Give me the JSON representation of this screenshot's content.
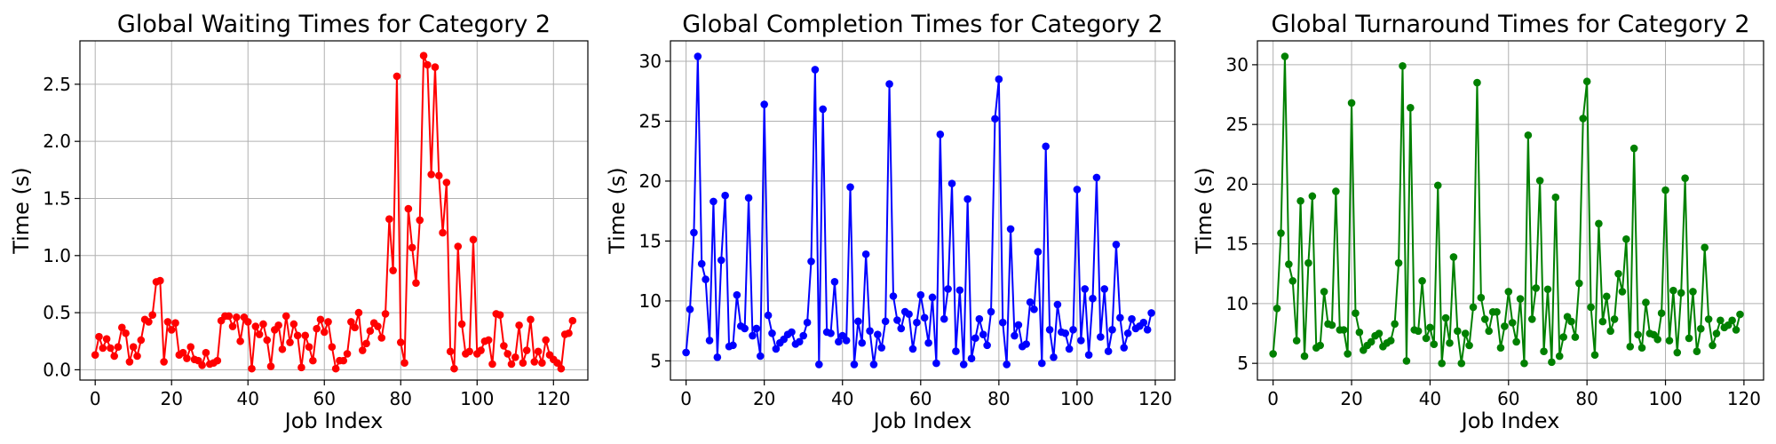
{
  "chart_data": [
    {
      "type": "line",
      "title": "Global Waiting Times for Category 2",
      "xlabel": "Job Index",
      "ylabel": "Time (s)",
      "color": "#ff0000",
      "xlim": [
        -4,
        129
      ],
      "ylim": [
        -0.09,
        2.88
      ],
      "xticks": [
        0,
        20,
        40,
        60,
        80,
        100,
        120
      ],
      "yticks": [
        0.0,
        0.5,
        1.0,
        1.5,
        2.0,
        2.5
      ],
      "ytick_labels": [
        "0.0",
        "0.5",
        "1.0",
        "1.5",
        "2.0",
        "2.5"
      ],
      "grid": true,
      "values": [
        0.13,
        0.29,
        0.19,
        0.27,
        0.19,
        0.12,
        0.2,
        0.37,
        0.32,
        0.07,
        0.2,
        0.12,
        0.26,
        0.44,
        0.42,
        0.48,
        0.77,
        0.78,
        0.07,
        0.42,
        0.35,
        0.41,
        0.13,
        0.15,
        0.1,
        0.2,
        0.09,
        0.08,
        0.04,
        0.15,
        0.05,
        0.06,
        0.08,
        0.43,
        0.47,
        0.47,
        0.38,
        0.46,
        0.25,
        0.46,
        0.42,
        0.01,
        0.38,
        0.31,
        0.4,
        0.26,
        0.03,
        0.35,
        0.39,
        0.18,
        0.47,
        0.24,
        0.4,
        0.3,
        0.02,
        0.3,
        0.2,
        0.08,
        0.36,
        0.44,
        0.33,
        0.42,
        0.2,
        0.01,
        0.08,
        0.08,
        0.14,
        0.42,
        0.37,
        0.5,
        0.17,
        0.23,
        0.34,
        0.41,
        0.38,
        0.28,
        0.49,
        1.32,
        0.87,
        2.57,
        0.24,
        0.06,
        1.41,
        1.07,
        0.76,
        1.31,
        2.75,
        2.67,
        1.71,
        2.65,
        1.7,
        1.2,
        1.64,
        0.16,
        0.01,
        1.08,
        0.4,
        0.14,
        0.16,
        1.14,
        0.14,
        0.17,
        0.25,
        0.26,
        0.05,
        0.49,
        0.48,
        0.21,
        0.14,
        0.05,
        0.11,
        0.39,
        0.06,
        0.17,
        0.44,
        0.07,
        0.16,
        0.06,
        0.26,
        0.13,
        0.09,
        0.06,
        0.01,
        0.31,
        0.32,
        0.43
      ]
    },
    {
      "type": "line",
      "title": "Global Completion Times for Category 2",
      "xlabel": "Job Index",
      "ylabel": "Time (s)",
      "color": "#0000ff",
      "xlim": [
        -4,
        125
      ],
      "ylim": [
        3.4,
        31.7
      ],
      "xticks": [
        0,
        20,
        40,
        60,
        80,
        100,
        120
      ],
      "yticks": [
        5,
        10,
        15,
        20,
        25,
        30
      ],
      "ytick_labels": [
        "5",
        "10",
        "15",
        "20",
        "25",
        "30"
      ],
      "grid": true,
      "values": [
        5.7,
        9.3,
        15.7,
        30.4,
        13.1,
        11.8,
        6.7,
        18.3,
        5.3,
        13.4,
        18.8,
        6.2,
        6.3,
        10.5,
        7.9,
        7.7,
        18.6,
        7.1,
        7.7,
        5.4,
        26.4,
        8.8,
        7.3,
        6.0,
        6.5,
        6.8,
        7.2,
        7.4,
        6.4,
        6.6,
        7.1,
        8.2,
        13.3,
        29.3,
        4.7,
        26.0,
        7.4,
        7.3,
        11.6,
        6.6,
        7.1,
        6.7,
        19.5,
        4.7,
        8.3,
        6.5,
        13.9,
        7.5,
        4.7,
        7.2,
        6.1,
        8.3,
        28.1,
        10.4,
        8.4,
        7.7,
        9.1,
        8.9,
        6.0,
        8.2,
        10.5,
        8.6,
        6.5,
        10.3,
        4.8,
        23.9,
        8.5,
        11.0,
        19.8,
        5.8,
        10.9,
        4.7,
        18.5,
        5.2,
        6.9,
        8.5,
        7.2,
        6.3,
        9.1,
        25.2,
        28.5,
        8.2,
        4.7,
        16.0,
        7.1,
        8.0,
        6.2,
        6.4,
        9.9,
        9.3,
        14.1,
        4.8,
        22.9,
        7.6,
        5.3,
        9.7,
        7.4,
        7.3,
        6.0,
        7.6,
        19.3,
        6.7,
        11.0,
        5.5,
        10.2,
        20.3,
        7.0,
        11.0,
        5.8,
        7.6,
        14.7,
        8.6,
        6.1,
        7.3,
        8.5,
        7.7,
        7.9,
        8.2,
        7.6,
        9.0
      ]
    },
    {
      "type": "line",
      "title": "Global Turnaround Times for Category 2",
      "xlabel": "Job Index",
      "ylabel": "Time (s)",
      "color": "#008000",
      "xlim": [
        -4,
        125
      ],
      "ylim": [
        3.6,
        32.0
      ],
      "xticks": [
        0,
        20,
        40,
        60,
        80,
        100,
        120
      ],
      "yticks": [
        5,
        10,
        15,
        20,
        25,
        30
      ],
      "ytick_labels": [
        "5",
        "10",
        "15",
        "20",
        "25",
        "30"
      ],
      "grid": true,
      "values": [
        5.8,
        9.6,
        15.9,
        30.7,
        13.3,
        11.9,
        6.9,
        18.6,
        5.6,
        13.4,
        19.0,
        6.3,
        6.5,
        11.0,
        8.3,
        8.2,
        19.4,
        7.8,
        7.8,
        5.8,
        26.8,
        9.2,
        7.6,
        6.1,
        6.5,
        6.8,
        7.3,
        7.5,
        6.4,
        6.7,
        6.9,
        8.3,
        13.4,
        29.9,
        5.2,
        26.4,
        7.8,
        7.7,
        11.9,
        7.1,
        8.0,
        6.6,
        19.9,
        5.0,
        8.8,
        6.7,
        13.9,
        7.7,
        5.0,
        7.5,
        6.5,
        9.7,
        28.5,
        10.5,
        8.7,
        7.7,
        9.3,
        9.3,
        6.3,
        8.1,
        11.0,
        8.4,
        6.8,
        10.4,
        5.0,
        24.1,
        8.7,
        11.3,
        20.3,
        6.0,
        11.2,
        5.1,
        18.9,
        5.6,
        7.2,
        8.9,
        8.5,
        7.2,
        11.7,
        25.5,
        28.6,
        9.7,
        5.7,
        16.7,
        8.5,
        10.6,
        7.7,
        8.7,
        12.5,
        11.0,
        15.4,
        6.4,
        23.0,
        7.4,
        6.3,
        10.1,
        7.5,
        7.4,
        7.0,
        9.2,
        19.5,
        6.9,
        11.1,
        5.9,
        10.9,
        20.5,
        7.1,
        11.0,
        6.0,
        7.9,
        14.7,
        8.7,
        6.5,
        7.5,
        8.6,
        8.0,
        8.2,
        8.6,
        7.8,
        9.1
      ]
    }
  ]
}
